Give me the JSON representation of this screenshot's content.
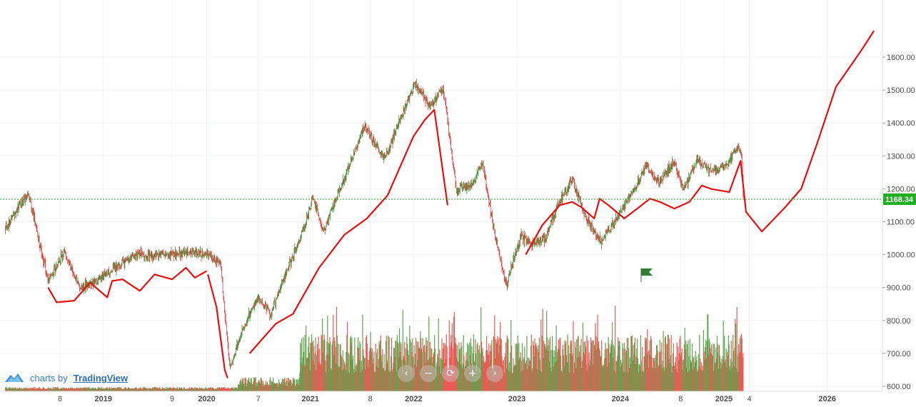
{
  "chart_data": {
    "type": "candlestick",
    "price_axis": {
      "ticks": [
        600,
        700,
        800,
        900,
        1000,
        1100,
        1200,
        1300,
        1400,
        1500,
        1600
      ],
      "tick_labels": [
        "600.00",
        "700.00",
        "800.00",
        "900.00",
        "1000.00",
        "1100.00",
        "1200.00",
        "1300.00",
        "1400.00",
        "1500.00",
        "1600.00"
      ],
      "range": [
        590,
        1610
      ]
    },
    "time_axis": {
      "range": [
        "2018-01-01",
        "2026-07-15"
      ],
      "ticks": [
        {
          "label": "8",
          "date": "2018-08-01",
          "major": false
        },
        {
          "label": "2019",
          "date": "2019-01-01",
          "major": true
        },
        {
          "label": "9",
          "date": "2019-09-01",
          "major": false
        },
        {
          "label": "2020",
          "date": "2020-01-01",
          "major": true
        },
        {
          "label": "7",
          "date": "2020-07-01",
          "major": false
        },
        {
          "label": "2021",
          "date": "2021-01-01",
          "major": true
        },
        {
          "label": "8",
          "date": "2021-08-01",
          "major": false
        },
        {
          "label": "2022",
          "date": "2022-01-01",
          "major": true
        },
        {
          "label": "2023",
          "date": "2023-01-01",
          "major": true
        },
        {
          "label": "2024",
          "date": "2024-01-01",
          "major": true
        },
        {
          "label": "8",
          "date": "2024-08-01",
          "major": false
        },
        {
          "label": "2025",
          "date": "2025-01-01",
          "major": true
        },
        {
          "label": "4",
          "date": "2025-04-01",
          "major": false
        },
        {
          "label": "2026",
          "date": "2026-01-01",
          "major": true
        }
      ]
    },
    "last_price": 1168.34,
    "last_price_label": "1168.34",
    "price_path": [
      [
        "2018-01-20",
        1080
      ],
      [
        "2018-04-10",
        1190
      ],
      [
        "2018-06-20",
        920
      ],
      [
        "2018-08-15",
        1010
      ],
      [
        "2018-10-10",
        900
      ],
      [
        "2018-12-10",
        920
      ],
      [
        "2019-02-15",
        960
      ],
      [
        "2019-04-20",
        1000
      ],
      [
        "2019-06-20",
        995
      ],
      [
        "2019-09-01",
        1000
      ],
      [
        "2019-11-10",
        1010
      ],
      [
        "2020-01-15",
        995
      ],
      [
        "2020-02-20",
        970
      ],
      [
        "2020-03-23",
        650
      ],
      [
        "2020-05-01",
        760
      ],
      [
        "2020-07-01",
        870
      ],
      [
        "2020-08-15",
        820
      ],
      [
        "2020-10-01",
        930
      ],
      [
        "2020-12-10",
        1080
      ],
      [
        "2021-01-10",
        1175
      ],
      [
        "2021-02-15",
        1070
      ],
      [
        "2021-05-01",
        1230
      ],
      [
        "2021-07-10",
        1390
      ],
      [
        "2021-09-20",
        1290
      ],
      [
        "2021-11-10",
        1400
      ],
      [
        "2022-01-05",
        1520
      ],
      [
        "2022-03-01",
        1450
      ],
      [
        "2022-04-15",
        1510
      ],
      [
        "2022-06-01",
        1200
      ],
      [
        "2022-07-20",
        1210
      ],
      [
        "2022-09-01",
        1280
      ],
      [
        "2022-10-15",
        1060
      ],
      [
        "2022-11-25",
        905
      ],
      [
        "2023-01-15",
        1060
      ],
      [
        "2023-02-20",
        1030
      ],
      [
        "2023-04-10",
        1050
      ],
      [
        "2023-06-01",
        1160
      ],
      [
        "2023-07-15",
        1230
      ],
      [
        "2023-09-01",
        1110
      ],
      [
        "2023-10-25",
        1040
      ],
      [
        "2023-12-20",
        1110
      ],
      [
        "2024-02-20",
        1200
      ],
      [
        "2024-04-01",
        1270
      ],
      [
        "2024-05-15",
        1220
      ],
      [
        "2024-07-10",
        1280
      ],
      [
        "2024-08-10",
        1200
      ],
      [
        "2024-10-01",
        1290
      ],
      [
        "2024-11-15",
        1250
      ],
      [
        "2025-01-10",
        1270
      ],
      [
        "2025-02-20",
        1330
      ],
      [
        "2025-03-05",
        1300
      ],
      [
        "2025-03-11",
        1168.34
      ]
    ],
    "overlay_paths": [
      {
        "color": "#e8100f",
        "points": [
          [
            "2018-06-20",
            900
          ],
          [
            "2018-07-20",
            855
          ],
          [
            "2018-09-20",
            860
          ],
          [
            "2018-11-15",
            915
          ],
          [
            "2019-01-15",
            870
          ],
          [
            "2019-02-01",
            920
          ],
          [
            "2019-03-10",
            925
          ],
          [
            "2019-05-10",
            890
          ],
          [
            "2019-07-01",
            940
          ],
          [
            "2019-09-01",
            925
          ],
          [
            "2019-10-20",
            960
          ],
          [
            "2019-11-20",
            930
          ],
          [
            "2020-01-01",
            950
          ]
        ]
      },
      {
        "color": "#e8100f",
        "points": [
          [
            "2020-01-05",
            940
          ],
          [
            "2020-02-05",
            840
          ],
          [
            "2020-03-05",
            650
          ],
          [
            "2020-03-15",
            625
          ]
        ]
      },
      {
        "color": "#e8100f",
        "points": [
          [
            "2020-06-01",
            700
          ],
          [
            "2020-09-01",
            790
          ],
          [
            "2020-11-01",
            820
          ],
          [
            "2021-02-01",
            960
          ],
          [
            "2021-05-01",
            1060
          ],
          [
            "2021-07-20",
            1110
          ],
          [
            "2021-10-01",
            1180
          ],
          [
            "2022-01-01",
            1360
          ],
          [
            "2022-02-10",
            1410
          ],
          [
            "2022-03-15",
            1440
          ],
          [
            "2022-05-01",
            1150
          ]
        ]
      },
      {
        "color": "#e8100f",
        "points": [
          [
            "2023-02-01",
            1000
          ],
          [
            "2023-04-01",
            1090
          ],
          [
            "2023-06-01",
            1150
          ],
          [
            "2023-07-15",
            1160
          ],
          [
            "2023-08-15",
            1145
          ],
          [
            "2023-10-01",
            1110
          ],
          [
            "2023-10-20",
            1170
          ],
          [
            "2023-11-20",
            1150
          ],
          [
            "2024-01-15",
            1110
          ],
          [
            "2024-03-01",
            1140
          ],
          [
            "2024-04-15",
            1170
          ],
          [
            "2024-05-20",
            1160
          ],
          [
            "2024-07-10",
            1140
          ],
          [
            "2024-09-01",
            1160
          ],
          [
            "2024-10-15",
            1210
          ],
          [
            "2024-11-15",
            1200
          ],
          [
            "2025-01-20",
            1190
          ],
          [
            "2025-03-01",
            1285
          ],
          [
            "2025-03-20",
            1130
          ],
          [
            "2025-05-15",
            1070
          ],
          [
            "2025-08-01",
            1140
          ],
          [
            "2025-10-01",
            1200
          ],
          [
            "2025-12-01",
            1350
          ],
          [
            "2026-02-01",
            1510
          ],
          [
            "2026-05-01",
            1620
          ],
          [
            "2026-06-15",
            1680
          ]
        ]
      }
    ]
  },
  "branding": {
    "prefix": "charts by",
    "name": "TradingView"
  },
  "zoom_controls": {
    "scroll_left_icon": "‹",
    "zoom_out_icon": "−",
    "reset_icon": "⟳",
    "zoom_in_icon": "+",
    "scroll_right_icon": "›"
  },
  "colors": {
    "up": "#3a8a2a",
    "down": "#e03a3a",
    "overlay": "#e8100f",
    "last_price_line": "#1f9e1f",
    "last_price_tag": "#1fae1f",
    "flag": "#2e7d32"
  }
}
